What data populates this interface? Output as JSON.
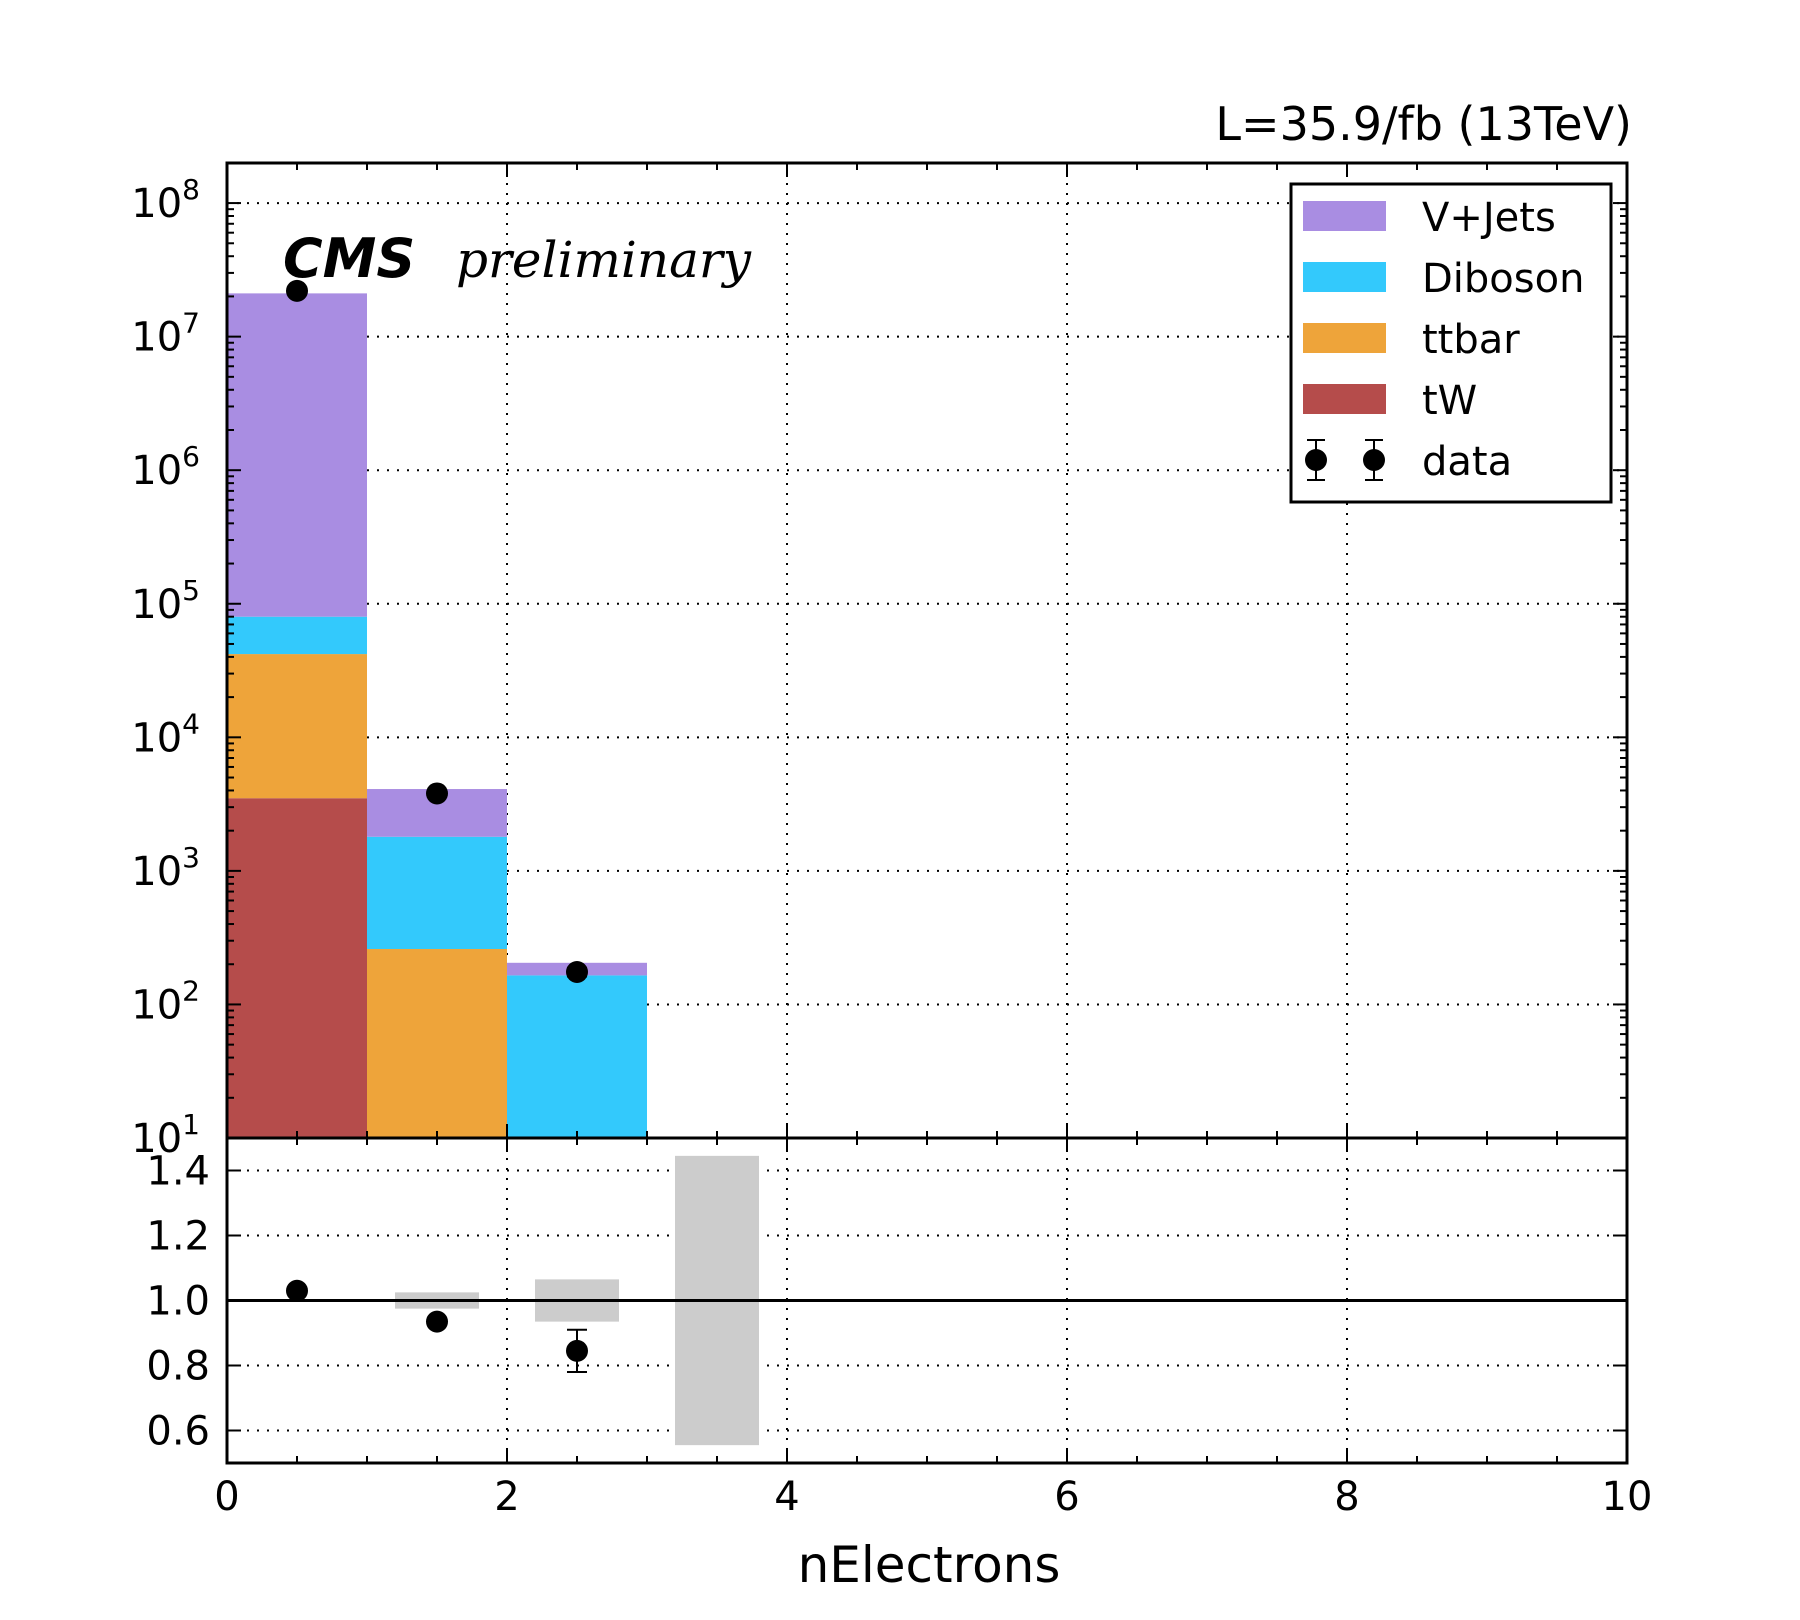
{
  "chart_data": {
    "type": "bar",
    "stacked": true,
    "log_y": true,
    "lumi_label": "L=35.9/fb (13TeV)",
    "cms_label": "CMS",
    "cms_sublabel": "preliminary",
    "xlabel": "nElectrons",
    "xlim": [
      0,
      10
    ],
    "xticks": [
      "0",
      "2",
      "4",
      "6",
      "8",
      "10"
    ],
    "ylim_exponents": [
      1,
      8.3
    ],
    "yticks": [
      {
        "base": "10",
        "exp": "1"
      },
      {
        "base": "10",
        "exp": "2"
      },
      {
        "base": "10",
        "exp": "3"
      },
      {
        "base": "10",
        "exp": "4"
      },
      {
        "base": "10",
        "exp": "5"
      },
      {
        "base": "10",
        "exp": "6"
      },
      {
        "base": "10",
        "exp": "7"
      },
      {
        "base": "10",
        "exp": "8"
      }
    ],
    "bins": [
      {
        "lo": 0,
        "hi": 1
      },
      {
        "lo": 1,
        "hi": 2
      },
      {
        "lo": 2,
        "hi": 3
      }
    ],
    "series": [
      {
        "name": "tW",
        "color": "#b54c4b",
        "values": [
          3500,
          0,
          0
        ]
      },
      {
        "name": "ttbar",
        "color": "#eea43a",
        "values": [
          38500,
          260,
          0
        ]
      },
      {
        "name": "Diboson",
        "color": "#33c9fc",
        "values": [
          38000,
          1540,
          165
        ]
      },
      {
        "name": "V+Jets",
        "color": "#a98de2",
        "values": [
          21000000,
          2300,
          40
        ]
      }
    ],
    "data": {
      "name": "data",
      "x": [
        0.5,
        1.5,
        2.5
      ],
      "y": [
        22000000,
        3800,
        175
      ],
      "yerr": [
        4700,
        62,
        13
      ]
    },
    "ratio": {
      "ylim": [
        0.5,
        1.5
      ],
      "yticks": [
        "0.6",
        "0.8",
        "1.0",
        "1.2",
        "1.4"
      ],
      "points": [
        {
          "x": 0.5,
          "y": 1.03,
          "err": 0.005
        },
        {
          "x": 1.5,
          "y": 0.935,
          "err": 0.012
        },
        {
          "x": 2.5,
          "y": 0.845,
          "err": 0.065
        }
      ],
      "uncertainty_bands": [
        {
          "x0": 1.2,
          "x1": 1.8,
          "lo": 0.975,
          "hi": 1.025
        },
        {
          "x0": 2.2,
          "x1": 2.8,
          "lo": 0.935,
          "hi": 1.065
        },
        {
          "x0": 3.2,
          "x1": 3.8,
          "lo": 0.555,
          "hi": 1.445
        }
      ],
      "band_color": "#cccccc"
    },
    "grid": true,
    "legend_position": "top-right"
  }
}
